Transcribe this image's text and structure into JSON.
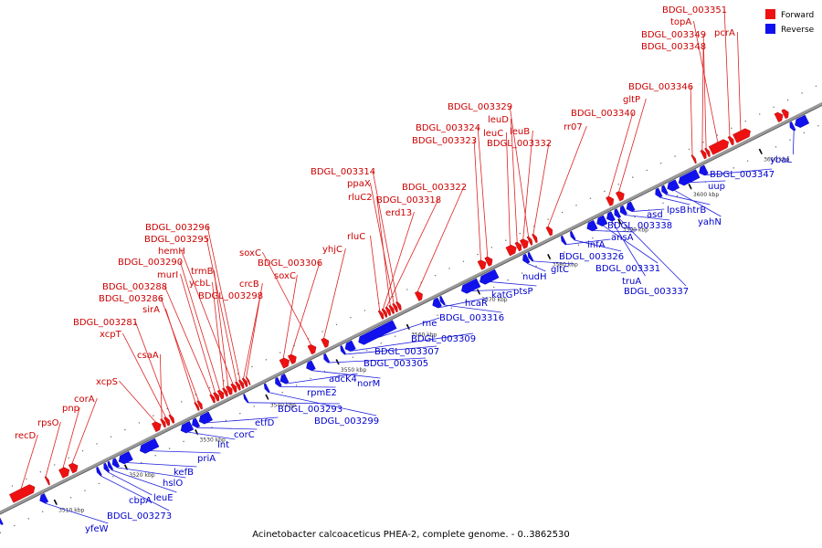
{
  "caption": "Acinetobacter calcoaceticus PHEA-2, complete genome. - 0..3862530",
  "legend": {
    "forward_label": "Forward",
    "reverse_label": "Reverse",
    "forward_color": "#ee1111",
    "reverse_color": "#1111ee"
  },
  "colors": {
    "backbone": "#999999",
    "leader_forward": "#dd2222",
    "leader_reverse": "#2222dd",
    "tick": "#000000"
  },
  "ticks": [
    {
      "pos": 3510,
      "label": "3510 kbp"
    },
    {
      "pos": 3520,
      "label": "3520 kbp"
    },
    {
      "pos": 3530,
      "label": "3530 kbp"
    },
    {
      "pos": 3540,
      "label": "3540 kbp"
    },
    {
      "pos": 3550,
      "label": "3550 kbp"
    },
    {
      "pos": 3560,
      "label": "3560 kbp"
    },
    {
      "pos": 3570,
      "label": "3570 kbp"
    },
    {
      "pos": 3580,
      "label": "3580 kbp"
    },
    {
      "pos": 3590,
      "label": "3590 kbp"
    },
    {
      "pos": 3600,
      "label": "3600 kbp"
    },
    {
      "pos": 3610,
      "label": "3610 kbp"
    }
  ],
  "forward_genes": [
    {
      "name": "recD",
      "start": 3505.2,
      "end": 3508.5
    },
    {
      "name": "rpsO",
      "start": 3510.2,
      "end": 3510.5
    },
    {
      "name": "pnp",
      "start": 3512.2,
      "end": 3513.4
    },
    {
      "name": "corA",
      "start": 3513.6,
      "end": 3514.6
    },
    {
      "name": "xcpS",
      "start": 3525.4,
      "end": 3526.4
    },
    {
      "name": "csaA",
      "start": 3526.6,
      "end": 3527.0
    },
    {
      "name": "xcpT",
      "start": 3527.1,
      "end": 3527.6
    },
    {
      "name": "BDGL_003281",
      "start": 3527.8,
      "end": 3528.2
    },
    {
      "name": "sirA",
      "start": 3531.4,
      "end": 3531.7
    },
    {
      "name": "BDGL_003286",
      "start": 3531.8,
      "end": 3532.2
    },
    {
      "name": "BDGL_003288",
      "start": 3533.6,
      "end": 3534.0
    },
    {
      "name": "murI",
      "start": 3534.1,
      "end": 3534.6
    },
    {
      "name": "BDGL_003290",
      "start": 3534.7,
      "end": 3535.3
    },
    {
      "name": "ycbL",
      "start": 3535.4,
      "end": 3535.8
    },
    {
      "name": "trmB",
      "start": 3535.9,
      "end": 3536.5
    },
    {
      "name": "hemH",
      "start": 3536.6,
      "end": 3537.1
    },
    {
      "name": "BDGL_003295",
      "start": 3537.2,
      "end": 3537.6
    },
    {
      "name": "BDGL_003296",
      "start": 3537.7,
      "end": 3538.1
    },
    {
      "name": "BDGL_003298",
      "start": 3538.2,
      "end": 3538.6
    },
    {
      "name": "crcB",
      "start": 3538.7,
      "end": 3538.9
    },
    {
      "name": "soxC",
      "start": 3543.5,
      "end": 3544.6
    },
    {
      "name": "BDGL_003306",
      "start": 3544.7,
      "end": 3545.6
    },
    {
      "name": "soxC",
      "start": 3547.5,
      "end": 3548.4
    },
    {
      "name": "yhjC",
      "start": 3549.4,
      "end": 3550.2
    },
    {
      "name": "rluC",
      "start": 3557.5,
      "end": 3557.9
    },
    {
      "name": "erd13",
      "start": 3558.0,
      "end": 3558.4
    },
    {
      "name": "BDGL_003318",
      "start": 3558.5,
      "end": 3558.9
    },
    {
      "name": "rluC2",
      "start": 3559.0,
      "end": 3559.4
    },
    {
      "name": "ppaX",
      "start": 3559.5,
      "end": 3559.9
    },
    {
      "name": "BDGL_003314",
      "start": 3560.0,
      "end": 3560.4
    },
    {
      "name": "BDGL_003322",
      "start": 3562.7,
      "end": 3563.5
    },
    {
      "name": "BDGL_003323",
      "start": 3571.6,
      "end": 3572.5
    },
    {
      "name": "BDGL_003324",
      "start": 3572.6,
      "end": 3573.4
    },
    {
      "name": "leuC",
      "start": 3575.6,
      "end": 3576.8
    },
    {
      "name": "leuD",
      "start": 3576.9,
      "end": 3577.5
    },
    {
      "name": "leuB",
      "start": 3577.6,
      "end": 3578.5
    },
    {
      "name": "BDGL_003329",
      "start": 3578.6,
      "end": 3579.0
    },
    {
      "name": "BDGL_003332",
      "start": 3579.3,
      "end": 3579.7
    },
    {
      "name": "rr07",
      "start": 3581.3,
      "end": 3581.9
    },
    {
      "name": "BDGL_003340",
      "start": 3589.8,
      "end": 3590.6
    },
    {
      "name": "gltP",
      "start": 3591.2,
      "end": 3592.1
    },
    {
      "name": "BDGL_003346",
      "start": 3601.9,
      "end": 3602.2
    },
    {
      "name": "BDGL_003348",
      "start": 3603.2,
      "end": 3603.7
    },
    {
      "name": "BDGL_003349",
      "start": 3603.8,
      "end": 3604.2
    },
    {
      "name": "topA",
      "start": 3604.4,
      "end": 3606.9
    },
    {
      "name": "BDGL_003351",
      "start": 3607.1,
      "end": 3607.6
    },
    {
      "name": "pcrA",
      "start": 3607.8,
      "end": 3610.0
    },
    {
      "name": "",
      "start": 3613.7,
      "end": 3614.6
    },
    {
      "name": "",
      "start": 3614.7,
      "end": 3615.4
    }
  ],
  "reverse_genes": [
    {
      "name": "",
      "start": 3502.4,
      "end": 3502.8
    },
    {
      "name": "yfeW",
      "start": 3508.3,
      "end": 3509.2
    },
    {
      "name": "BDGL_003273",
      "start": 3516.4,
      "end": 3516.8
    },
    {
      "name": "cbpA",
      "start": 3517.4,
      "end": 3517.9
    },
    {
      "name": "leuE",
      "start": 3518.0,
      "end": 3518.4
    },
    {
      "name": "hslO",
      "start": 3518.6,
      "end": 3519.3
    },
    {
      "name": "kefB",
      "start": 3519.5,
      "end": 3521.2
    },
    {
      "name": "priA",
      "start": 3522.5,
      "end": 3524.9
    },
    {
      "name": "lnt",
      "start": 3528.3,
      "end": 3529.8
    },
    {
      "name": "corC",
      "start": 3529.9,
      "end": 3530.7
    },
    {
      "name": "etfD",
      "start": 3530.9,
      "end": 3532.5
    },
    {
      "name": "BDGL_003293",
      "start": 3537.3,
      "end": 3537.6
    },
    {
      "name": "BDGL_003299",
      "start": 3540.2,
      "end": 3540.6
    },
    {
      "name": "rpmE2",
      "start": 3541.7,
      "end": 3542.3
    },
    {
      "name": "adcK4",
      "start": 3542.4,
      "end": 3543.3
    },
    {
      "name": "norM",
      "start": 3546.1,
      "end": 3547.1
    },
    {
      "name": "BDGL_003305",
      "start": 3548.6,
      "end": 3549.1
    },
    {
      "name": "BDGL_003307",
      "start": 3551.0,
      "end": 3551.4
    },
    {
      "name": "BDGL_003309",
      "start": 3551.6,
      "end": 3552.8
    },
    {
      "name": "rne",
      "start": 3553.5,
      "end": 3558.6
    },
    {
      "name": "hcaR",
      "start": 3564.0,
      "end": 3565.0
    },
    {
      "name": "BDGL_003316",
      "start": 3565.1,
      "end": 3565.5
    },
    {
      "name": "katG",
      "start": 3568.1,
      "end": 3570.5
    },
    {
      "name": "ptsP",
      "start": 3570.7,
      "end": 3573.1
    },
    {
      "name": "nudH",
      "start": 3576.8,
      "end": 3577.5
    },
    {
      "name": "gltC",
      "start": 3577.6,
      "end": 3578.0
    },
    {
      "name": "infA",
      "start": 3582.3,
      "end": 3582.7
    },
    {
      "name": "BDGL_003326",
      "start": 3583.6,
      "end": 3584.0
    },
    {
      "name": "ansA",
      "start": 3585.9,
      "end": 3587.1
    },
    {
      "name": "BDGL_003331",
      "start": 3587.3,
      "end": 3588.5
    },
    {
      "name": "truA",
      "start": 3588.7,
      "end": 3589.6
    },
    {
      "name": "BDGL_003337",
      "start": 3589.8,
      "end": 3590.4
    },
    {
      "name": "BDGL_003338",
      "start": 3590.6,
      "end": 3591.3
    },
    {
      "name": "asd",
      "start": 3591.5,
      "end": 3592.4
    },
    {
      "name": "lpsB",
      "start": 3595.6,
      "end": 3596.3
    },
    {
      "name": "htrB",
      "start": 3596.5,
      "end": 3597.1
    },
    {
      "name": "yahN",
      "start": 3597.3,
      "end": 3598.7
    },
    {
      "name": "uup",
      "start": 3598.9,
      "end": 3601.6
    },
    {
      "name": "BDGL_003347",
      "start": 3601.8,
      "end": 3602.8
    },
    {
      "name": "ybaL",
      "start": 3614.7,
      "end": 3615.2
    },
    {
      "name": "",
      "start": 3615.4,
      "end": 3617.1
    }
  ],
  "forward_labels": [
    {
      "text": "recD",
      "gene": "recD",
      "lx": 16,
      "ly": 480
    },
    {
      "text": "rpsO",
      "gene": "rpsO",
      "lx": 41,
      "ly": 466
    },
    {
      "text": "pnp",
      "gene": "pnp",
      "lx": 68,
      "ly": 450
    },
    {
      "text": "corA",
      "gene": "corA",
      "lx": 81,
      "ly": 440
    },
    {
      "text": "xcpS",
      "gene": "xcpS",
      "lx": 105,
      "ly": 421
    },
    {
      "text": "csaA",
      "gene": "csaA",
      "lx": 150,
      "ly": 392
    },
    {
      "text": "xcpT",
      "gene": "xcpT",
      "lx": 109,
      "ly": 369
    },
    {
      "text": "BDGL_003281",
      "gene": "BDGL_003281",
      "lx": 80,
      "ly": 356
    },
    {
      "text": "sirA",
      "gene": "sirA",
      "lx": 156,
      "ly": 342
    },
    {
      "text": "BDGL_003286",
      "gene": "BDGL_003286",
      "lx": 108,
      "ly": 330
    },
    {
      "text": "BDGL_003288",
      "gene": "BDGL_003288",
      "lx": 112,
      "ly": 317
    },
    {
      "text": "murI",
      "gene": "murI",
      "lx": 172,
      "ly": 304
    },
    {
      "text": "BDGL_003290",
      "gene": "BDGL_003290",
      "lx": 129,
      "ly": 290
    },
    {
      "text": "ycbL",
      "gene": "ycbL",
      "lx": 207,
      "ly": 313
    },
    {
      "text": "trmB",
      "gene": "trmB",
      "lx": 209,
      "ly": 300
    },
    {
      "text": "hemH",
      "gene": "hemH",
      "lx": 173,
      "ly": 278
    },
    {
      "text": "BDGL_003295",
      "gene": "BDGL_003295",
      "lx": 158,
      "ly": 265
    },
    {
      "text": "BDGL_003296",
      "gene": "BDGL_003296",
      "lx": 159,
      "ly": 252
    },
    {
      "text": "BDGL_003298",
      "gene": "BDGL_003298",
      "lx": 217,
      "ly": 327
    },
    {
      "text": "crcB",
      "gene": "crcB",
      "lx": 262,
      "ly": 314
    },
    {
      "text": "soxC",
      "gene": "soxC",
      "lx": 300,
      "ly": 305
    },
    {
      "text": "BDGL_003306",
      "gene": "BDGL_003306",
      "lx": 282,
      "ly": 291
    },
    {
      "text": "soxC",
      "gene": "soxC",
      "lx": 262,
      "ly": 280
    },
    {
      "text": "yhjC",
      "gene": "yhjC",
      "lx": 353,
      "ly": 276
    },
    {
      "text": "rluC",
      "gene": "rluC",
      "lx": 380,
      "ly": 262
    },
    {
      "text": "erd13",
      "gene": "erd13",
      "lx": 422,
      "ly": 236
    },
    {
      "text": "BDGL_003318",
      "gene": "BDGL_003318",
      "lx": 412,
      "ly": 222
    },
    {
      "text": "rluC2",
      "gene": "rluC2",
      "lx": 381,
      "ly": 219
    },
    {
      "text": "ppaX",
      "gene": "ppaX",
      "lx": 380,
      "ly": 204
    },
    {
      "text": "BDGL_003314",
      "gene": "BDGL_003314",
      "lx": 340,
      "ly": 191
    },
    {
      "text": "BDGL_003322",
      "gene": "BDGL_003322",
      "lx": 440,
      "ly": 208
    },
    {
      "text": "BDGL_003323",
      "gene": "BDGL_003323",
      "lx": 451,
      "ly": 157
    },
    {
      "text": "BDGL_003324",
      "gene": "BDGL_003324",
      "lx": 455,
      "ly": 143
    },
    {
      "text": "leuC",
      "gene": "leuC",
      "lx": 529,
      "ly": 149
    },
    {
      "text": "leuD",
      "gene": "leuD",
      "lx": 534,
      "ly": 134
    },
    {
      "text": "leuB",
      "gene": "leuB",
      "lx": 558,
      "ly": 147
    },
    {
      "text": "BDGL_003329",
      "gene": "BDGL_003329",
      "lx": 490,
      "ly": 120
    },
    {
      "text": "BDGL_003332",
      "gene": "BDGL_003332",
      "lx": 533,
      "ly": 160
    },
    {
      "text": "rr07",
      "gene": "rr07",
      "lx": 617,
      "ly": 142
    },
    {
      "text": "BDGL_003340",
      "gene": "BDGL_003340",
      "lx": 625,
      "ly": 127
    },
    {
      "text": "gltP",
      "gene": "gltP",
      "lx": 682,
      "ly": 112
    },
    {
      "text": "BDGL_003346",
      "gene": "BDGL_003346",
      "lx": 688,
      "ly": 98
    },
    {
      "text": "BDGL_003348",
      "gene": "BDGL_003348",
      "lx": 702,
      "ly": 54
    },
    {
      "text": "BDGL_003349",
      "gene": "BDGL_003349",
      "lx": 702,
      "ly": 41
    },
    {
      "text": "topA",
      "gene": "topA",
      "lx": 734,
      "ly": 27
    },
    {
      "text": "BDGL_003351",
      "gene": "BDGL_003351",
      "lx": 725,
      "ly": 14
    },
    {
      "text": "pcrA",
      "gene": "pcrA",
      "lx": 782,
      "ly": 39
    }
  ],
  "reverse_labels": [
    {
      "text": "yfeW",
      "gene": "yfeW",
      "lx": 93,
      "ly": 582
    },
    {
      "text": "BDGL_003273",
      "gene": "BDGL_003273",
      "lx": 117,
      "ly": 568
    },
    {
      "text": "cbpA",
      "gene": "cbpA",
      "lx": 141,
      "ly": 551
    },
    {
      "text": "leuE",
      "gene": "leuE",
      "lx": 168,
      "ly": 548
    },
    {
      "text": "hslO",
      "gene": "hslO",
      "lx": 178,
      "ly": 532
    },
    {
      "text": "kefB",
      "gene": "kefB",
      "lx": 190,
      "ly": 520
    },
    {
      "text": "priA",
      "gene": "priA",
      "lx": 216,
      "ly": 505
    },
    {
      "text": "lnt",
      "gene": "lnt",
      "lx": 238,
      "ly": 490
    },
    {
      "text": "corC",
      "gene": "corC",
      "lx": 256,
      "ly": 479
    },
    {
      "text": "etfD",
      "gene": "etfD",
      "lx": 279,
      "ly": 466
    },
    {
      "text": "BDGL_003293",
      "gene": "BDGL_003293",
      "lx": 304,
      "ly": 451
    },
    {
      "text": "BDGL_003299",
      "gene": "BDGL_003299",
      "lx": 344,
      "ly": 464
    },
    {
      "text": "rpmE2",
      "gene": "rpmE2",
      "lx": 336,
      "ly": 433
    },
    {
      "text": "adcK4",
      "gene": "adcK4",
      "lx": 360,
      "ly": 418
    },
    {
      "text": "norM",
      "gene": "norM",
      "lx": 391,
      "ly": 423
    },
    {
      "text": "BDGL_003305",
      "gene": "BDGL_003305",
      "lx": 398,
      "ly": 401
    },
    {
      "text": "BDGL_003307",
      "gene": "BDGL_003307",
      "lx": 410,
      "ly": 388
    },
    {
      "text": "BDGL_003309",
      "gene": "BDGL_003309",
      "lx": 450,
      "ly": 374
    },
    {
      "text": "rne",
      "gene": "rne",
      "lx": 462,
      "ly": 357
    },
    {
      "text": "hcaR",
      "gene": "hcaR",
      "lx": 509,
      "ly": 335
    },
    {
      "text": "BDGL_003316",
      "gene": "BDGL_003316",
      "lx": 481,
      "ly": 351
    },
    {
      "text": "katG",
      "gene": "katG",
      "lx": 538,
      "ly": 326
    },
    {
      "text": "ptsP",
      "gene": "ptsP",
      "lx": 562,
      "ly": 322
    },
    {
      "text": "nudH",
      "gene": "nudH",
      "lx": 572,
      "ly": 306
    },
    {
      "text": "gltC",
      "gene": "gltC",
      "lx": 603,
      "ly": 298
    },
    {
      "text": "infA",
      "gene": "infA",
      "lx": 643,
      "ly": 271
    },
    {
      "text": "BDGL_003326",
      "gene": "BDGL_003326",
      "lx": 612,
      "ly": 284
    },
    {
      "text": "ansA",
      "gene": "ansA",
      "lx": 669,
      "ly": 263
    },
    {
      "text": "BDGL_003331",
      "gene": "BDGL_003331",
      "lx": 652,
      "ly": 297
    },
    {
      "text": "truA",
      "gene": "truA",
      "lx": 681,
      "ly": 311
    },
    {
      "text": "BDGL_003337",
      "gene": "BDGL_003337",
      "lx": 683,
      "ly": 322
    },
    {
      "text": "BDGL_003338",
      "gene": "BDGL_003338",
      "lx": 665,
      "ly": 250
    },
    {
      "text": "asd",
      "gene": "asd",
      "lx": 708,
      "ly": 238
    },
    {
      "text": "lpsB",
      "gene": "lpsB",
      "lx": 730,
      "ly": 233
    },
    {
      "text": "htrB",
      "gene": "htrB",
      "lx": 752,
      "ly": 233
    },
    {
      "text": "yahN",
      "gene": "yahN",
      "lx": 764,
      "ly": 246
    },
    {
      "text": "uup",
      "gene": "uup",
      "lx": 775,
      "ly": 207
    },
    {
      "text": "BDGL_003347",
      "gene": "BDGL_003347",
      "lx": 777,
      "ly": 194
    },
    {
      "text": "ybaL",
      "gene": "ybaL",
      "lx": 843,
      "ly": 178
    }
  ]
}
